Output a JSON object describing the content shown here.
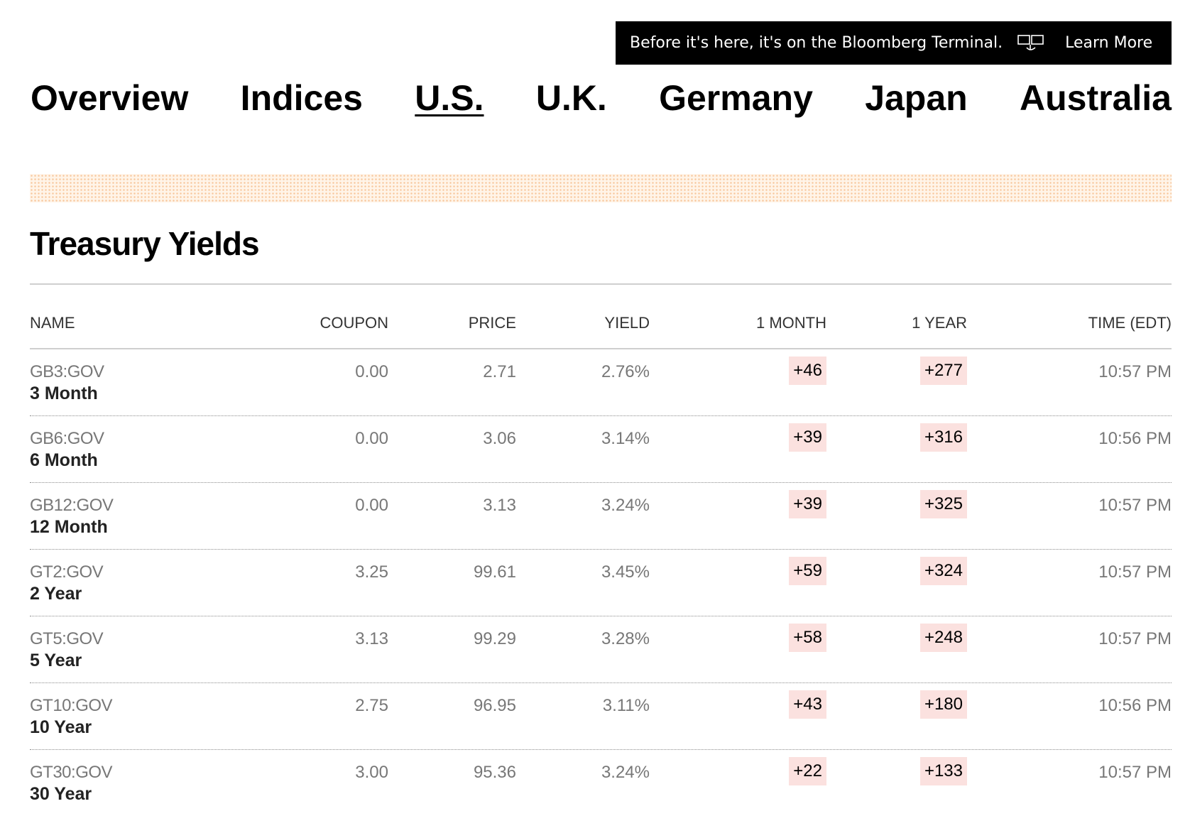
{
  "promo": {
    "text": "Before it's here, it's on the Bloomberg Terminal.",
    "icon": "terminal-icon",
    "cta": "Learn More"
  },
  "nav": {
    "items": [
      {
        "label": "Overview",
        "active": false
      },
      {
        "label": "Indices",
        "active": false
      },
      {
        "label": "U.S.",
        "active": true
      },
      {
        "label": "U.K.",
        "active": false
      },
      {
        "label": "Germany",
        "active": false
      },
      {
        "label": "Japan",
        "active": false
      },
      {
        "label": "Australia",
        "active": false
      }
    ]
  },
  "section": {
    "title": "Treasury Yields"
  },
  "table": {
    "headers": {
      "name": "NAME",
      "coupon": "COUPON",
      "price": "PRICE",
      "yield": "YIELD",
      "month": "1 MONTH",
      "year": "1 YEAR",
      "time": "TIME (EDT)"
    },
    "rows": [
      {
        "ticker": "GB3:GOV",
        "term": "3 Month",
        "coupon": "0.00",
        "price": "2.71",
        "yield": "2.76%",
        "month": "+46",
        "year": "+277",
        "time": "10:57 PM"
      },
      {
        "ticker": "GB6:GOV",
        "term": "6 Month",
        "coupon": "0.00",
        "price": "3.06",
        "yield": "3.14%",
        "month": "+39",
        "year": "+316",
        "time": "10:56 PM"
      },
      {
        "ticker": "GB12:GOV",
        "term": "12 Month",
        "coupon": "0.00",
        "price": "3.13",
        "yield": "3.24%",
        "month": "+39",
        "year": "+325",
        "time": "10:57 PM"
      },
      {
        "ticker": "GT2:GOV",
        "term": "2 Year",
        "coupon": "3.25",
        "price": "99.61",
        "yield": "3.45%",
        "month": "+59",
        "year": "+324",
        "time": "10:57 PM"
      },
      {
        "ticker": "GT5:GOV",
        "term": "5 Year",
        "coupon": "3.13",
        "price": "99.29",
        "yield": "3.28%",
        "month": "+58",
        "year": "+248",
        "time": "10:57 PM"
      },
      {
        "ticker": "GT10:GOV",
        "term": "10 Year",
        "coupon": "2.75",
        "price": "96.95",
        "yield": "3.11%",
        "month": "+43",
        "year": "+180",
        "time": "10:56 PM"
      },
      {
        "ticker": "GT30:GOV",
        "term": "30 Year",
        "coupon": "3.00",
        "price": "95.36",
        "yield": "3.24%",
        "month": "+22",
        "year": "+133",
        "time": "10:57 PM"
      }
    ]
  },
  "colors": {
    "positive_change_bg": "#fbe1df",
    "stripe_dot": "#f7c79d",
    "promo_bg": "#000000"
  }
}
